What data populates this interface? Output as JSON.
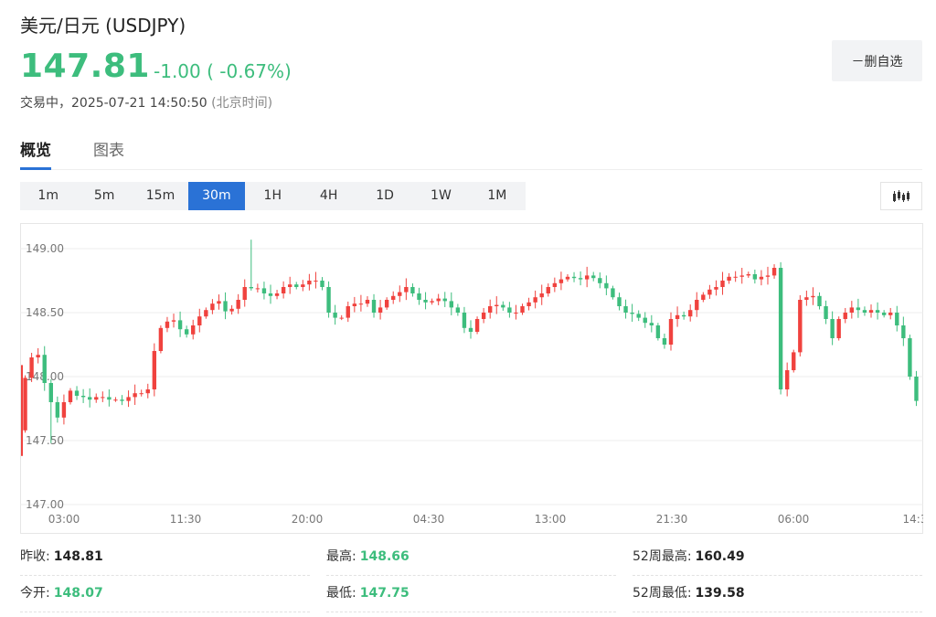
{
  "header": {
    "title": "美元/日元 (USDJPY)",
    "price": "147.81",
    "change": "-1.00 ( -0.67%)",
    "status": "交易中，2025-07-21 14:50:50",
    "timezone": "(北京时间)"
  },
  "watchlist_button": {
    "label": "－删自选"
  },
  "tabs": [
    {
      "label": "概览"
    },
    {
      "label": "图表"
    }
  ],
  "ranges": [
    {
      "label": "1m"
    },
    {
      "label": "5m"
    },
    {
      "label": "15m"
    },
    {
      "label": "30m"
    },
    {
      "label": "1H"
    },
    {
      "label": "4H"
    },
    {
      "label": "1D"
    },
    {
      "label": "1W"
    },
    {
      "label": "1M"
    }
  ],
  "active_range": "30m",
  "chart_type_icon": "candlestick-chart-icon",
  "colors": {
    "up": "#f0423e",
    "down": "#3dbd7d",
    "accent": "#2a72d6"
  },
  "chart_data": {
    "type": "candlestick",
    "y_ticks": [
      "149.00",
      "148.50",
      "148.00",
      "147.50",
      "147.00"
    ],
    "x_ticks": [
      "03:00",
      "11:30",
      "20:00",
      "04:30",
      "13:00",
      "21:30",
      "06:00",
      "14:3"
    ],
    "ylim": [
      147.0,
      149.2
    ],
    "grid": "horizontal",
    "closes": [
      147.99,
      148.15,
      148.17,
      147.95,
      147.8,
      147.68,
      147.8,
      147.89,
      147.85,
      147.84,
      147.82,
      147.84,
      147.84,
      147.82,
      147.82,
      147.81,
      147.84,
      147.87,
      147.87,
      147.9,
      148.2,
      148.38,
      148.43,
      148.44,
      148.37,
      148.33,
      148.4,
      148.47,
      148.52,
      148.57,
      148.59,
      148.51,
      148.53,
      148.6,
      148.7,
      148.69,
      148.69,
      148.65,
      148.63,
      148.65,
      148.7,
      148.72,
      148.7,
      148.72,
      148.75,
      148.75,
      148.7,
      148.5,
      148.46,
      148.46,
      148.55,
      148.57,
      148.57,
      148.6,
      148.5,
      148.54,
      148.6,
      148.63,
      148.66,
      148.7,
      148.65,
      148.6,
      148.58,
      148.59,
      148.61,
      148.59,
      148.54,
      148.5,
      148.38,
      148.35,
      148.45,
      148.5,
      148.55,
      148.56,
      148.54,
      148.5,
      148.5,
      148.55,
      148.58,
      148.62,
      148.65,
      148.7,
      148.73,
      148.76,
      148.78,
      148.77,
      148.76,
      148.79,
      148.77,
      148.73,
      148.69,
      148.62,
      148.55,
      148.5,
      148.49,
      148.46,
      148.42,
      148.4,
      148.3,
      148.25,
      148.45,
      148.48,
      148.47,
      148.52,
      148.6,
      148.64,
      148.68,
      148.7,
      148.75,
      148.78,
      148.78,
      148.79,
      148.8,
      148.76,
      148.78,
      148.79,
      148.85,
      147.9,
      148.05,
      148.19,
      148.6,
      148.62,
      148.63,
      148.55,
      148.45,
      148.3,
      148.45,
      148.5,
      148.54,
      148.52,
      148.5,
      148.52,
      148.5,
      148.48,
      148.5,
      148.4,
      148.3,
      148.0,
      147.81
    ],
    "series": [
      {
        "name": "USDJPY 30m"
      }
    ]
  },
  "stats": [
    {
      "label": "昨收:",
      "value": "148.81",
      "tone": "black"
    },
    {
      "label": "最高:",
      "value": "148.66",
      "tone": "green"
    },
    {
      "label": "52周最高:",
      "value": "160.49",
      "tone": "black"
    },
    {
      "label": "今开:",
      "value": "148.07",
      "tone": "green"
    },
    {
      "label": "最低:",
      "value": "147.75",
      "tone": "green"
    },
    {
      "label": "52周最低:",
      "value": "139.58",
      "tone": "black"
    }
  ]
}
